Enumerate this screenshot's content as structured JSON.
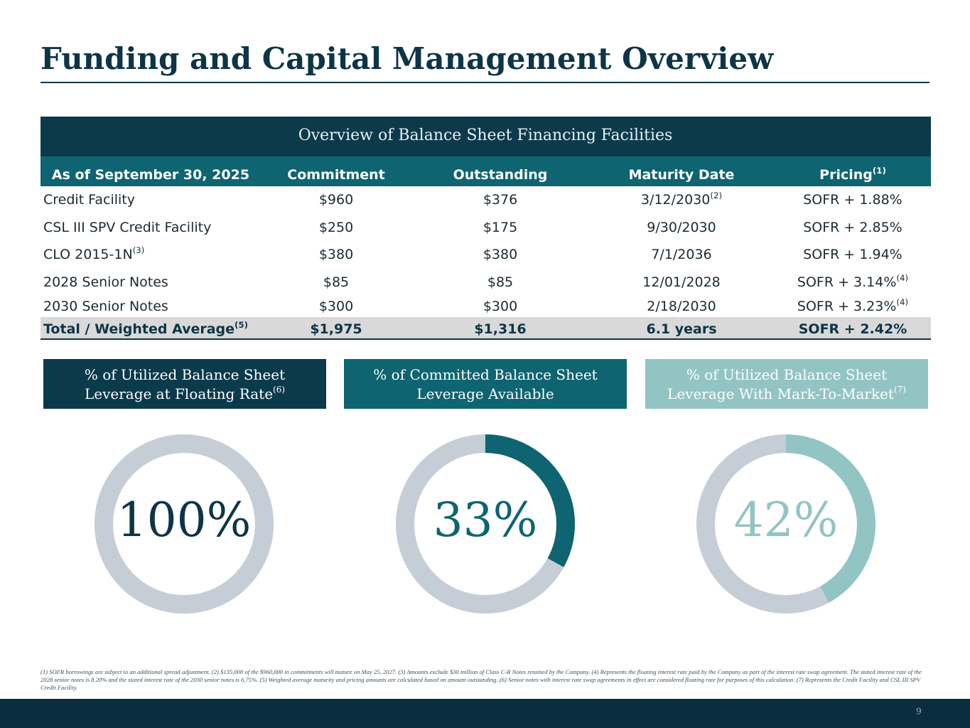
{
  "title": "Funding and Capital Management Overview",
  "table": {
    "heading": "Overview of Balance Sheet Financing Facilities",
    "columns": [
      "As of September 30, 2025",
      "Commitment",
      "Outstanding",
      "Maturity Date",
      {
        "text": "Pricing",
        "note": "(1)"
      }
    ],
    "rows": [
      [
        "Credit Facility",
        "$960",
        "$376",
        {
          "text": "3/12/2030",
          "note": "(2)"
        },
        "SOFR + 1.88%"
      ],
      [
        "CSL III SPV Credit Facility",
        "$250",
        "$175",
        "9/30/2030",
        "SOFR + 2.85%"
      ],
      [
        {
          "text": "CLO 2015-1N",
          "note": "(3)"
        },
        "$380",
        "$380",
        "7/1/2036",
        "SOFR + 1.94%"
      ],
      [
        "2028 Senior Notes",
        "$85",
        "$85",
        "12/01/2028",
        {
          "text": "SOFR + 3.14%",
          "note": "(4)"
        }
      ],
      [
        "2030 Senior Notes",
        "$300",
        "$300",
        "2/18/2030",
        {
          "text": "SOFR + 3.23%",
          "note": "(4)"
        }
      ]
    ],
    "total": [
      {
        "text": "Total / Weighted Average",
        "note": "(5)"
      },
      "$1,975",
      "$1,316",
      "6.1 years",
      "SOFR + 2.42%"
    ]
  },
  "donuts": [
    {
      "title": [
        "% of Utilized Balance Sheet",
        "Leverage at Floating Rate"
      ],
      "note": "(6)",
      "value": 100,
      "value_label": "100%",
      "box_color": "#0b3a4b",
      "arc_color": "#c5ced6",
      "text_color": "#0d3547"
    },
    {
      "title": [
        "% of Committed Balance Sheet",
        "Leverage Available"
      ],
      "value": 33,
      "value_label": "33%",
      "box_color": "#0e6470",
      "arc_color": "#0e6470",
      "text_color": "#0e6470"
    },
    {
      "title": [
        "% of Utilized Balance Sheet",
        "Leverage With Mark-To-Market"
      ],
      "note": "(7)",
      "value": 42,
      "value_label": "42%",
      "box_color": "#93c4c4",
      "arc_color": "#93c4c4",
      "text_color": "#93c4c4"
    }
  ],
  "footnote": "(1) SOFR borrowings are subject to an additional spread adjustment. (2) $135,000 of the $960,000 in commitments will mature on May 25, 2027. (3) Amounts exclude $30 million of Class C-R Notes retained by the Company. (4) Represents the floating interest rate paid by the Company as part of the interest rate swap agreement. The stated interest rate of the 2028 senior notes is 8.20% and the stated interest rate of the 2030 senior notes is 6.75%. (5) Weighted average maturity and pricing amounts are calculated based on amount outstanding. (6) Senior notes with interest rate swap agreements in effect are considered floating rate for purposes of this calculation. (7) Represents the Credit Facility and CSL III SPV Credit Facility.",
  "page_number": "9"
}
